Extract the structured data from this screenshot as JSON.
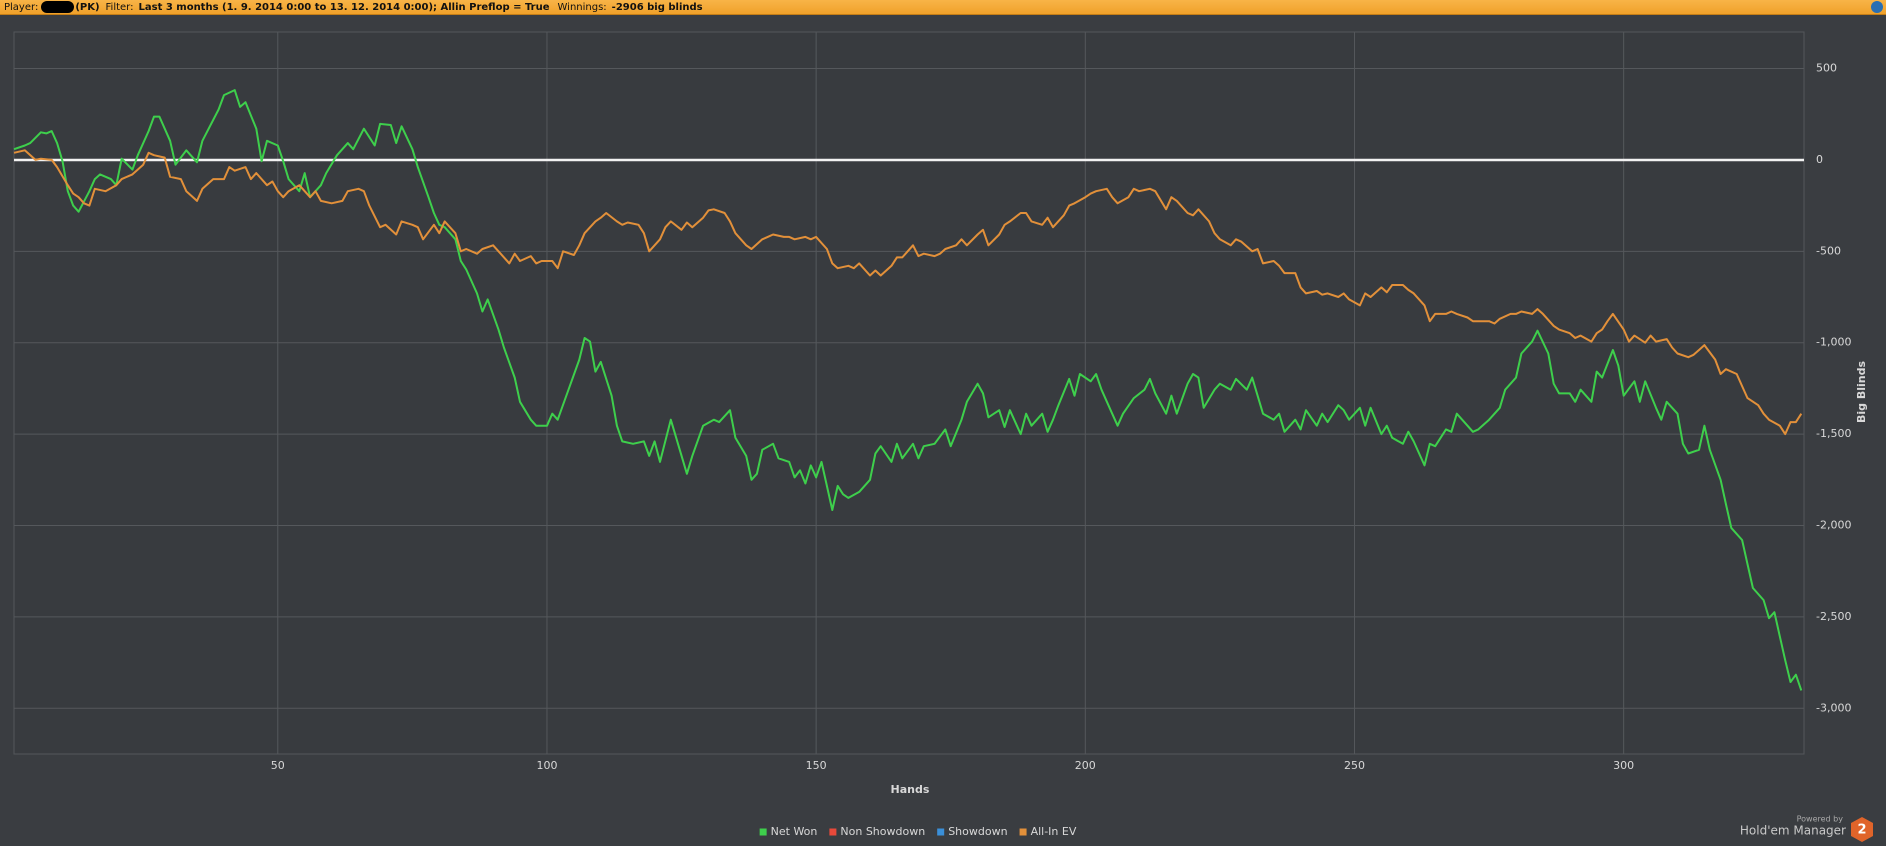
{
  "header": {
    "player_label": "Player:",
    "player_suffix": "(PK)",
    "filter_label": "Filter:",
    "filter": "Last 3 months (1. 9. 2014 0:00 to 13. 12. 2014 0:00); Allin Preflop = True",
    "winnings_label": "Winnings:",
    "winnings": "-2906 big blinds"
  },
  "chart_data": {
    "type": "line",
    "x_label": "Hands",
    "y_label": "Big Blinds",
    "xlim": [
      1,
      333.5
    ],
    "ylim": [
      -3250,
      700
    ],
    "xticks": [
      50,
      100,
      150,
      200,
      250,
      300
    ],
    "yticks": [
      500,
      0,
      -500,
      {
        "value": -1000,
        "label": "-1,000"
      },
      {
        "value": -1500,
        "label": "-1,500"
      },
      {
        "value": -2000,
        "label": "-2,000"
      },
      {
        "value": -2500,
        "label": "-2,500"
      },
      {
        "value": -3000,
        "label": "-3,000"
      }
    ],
    "grid": true,
    "series": [
      {
        "name": "Net Won",
        "color": "#3ecf4c",
        "x": [
          1,
          3,
          4,
          6,
          7,
          8,
          9,
          10,
          11,
          12,
          13,
          15,
          16,
          17,
          19,
          20,
          21,
          23,
          24,
          26,
          27,
          28,
          30,
          31,
          33,
          35,
          36,
          39,
          40,
          42,
          43,
          44,
          46,
          47,
          48,
          50,
          51,
          52,
          54,
          55,
          56,
          58,
          59,
          61,
          63,
          64,
          66,
          68,
          69,
          71,
          72,
          73,
          75,
          76,
          78,
          79,
          80,
          81,
          83,
          84,
          85,
          87,
          88,
          89,
          91,
          92,
          94,
          95,
          97,
          98,
          100,
          101,
          102,
          104,
          106,
          107,
          108,
          109,
          110,
          112,
          113,
          114,
          116,
          118,
          119,
          120,
          121,
          123,
          124,
          126,
          127,
          129,
          131,
          132,
          134,
          135,
          137,
          138,
          139,
          140,
          142,
          143,
          145,
          146,
          147,
          148,
          149,
          150,
          151,
          153,
          154,
          155,
          156,
          158,
          160,
          161,
          162,
          164,
          165,
          166,
          168,
          169,
          170,
          172,
          174,
          175,
          177,
          178,
          180,
          181,
          182,
          184,
          185,
          186,
          188,
          189,
          190,
          192,
          193,
          194,
          195,
          197,
          198,
          199,
          201,
          202,
          203,
          205,
          206,
          207,
          209,
          211,
          212,
          213,
          215,
          216,
          217,
          219,
          220,
          221,
          222,
          224,
          225,
          227,
          228,
          230,
          231,
          233,
          235,
          236,
          237,
          239,
          240,
          241,
          243,
          244,
          245,
          247,
          248,
          249,
          251,
          252,
          253,
          255,
          256,
          257,
          259,
          260,
          261,
          263,
          264,
          265,
          267,
          268,
          269,
          271,
          272,
          273,
          275,
          277,
          278,
          280,
          281,
          283,
          284,
          286,
          287,
          288,
          290,
          291,
          292,
          294,
          295,
          296,
          298,
          299,
          300,
          302,
          303,
          304,
          306,
          307,
          308,
          310,
          311,
          312,
          314,
          315,
          316,
          318,
          319,
          320,
          322,
          323,
          324,
          326,
          327,
          328,
          329,
          330,
          331,
          332,
          333
        ],
        "values": [
          59,
          79,
          92,
          151,
          145,
          158,
          92,
          -7,
          -171,
          -250,
          -283,
          -171,
          -105,
          -79,
          -105,
          -138,
          7,
          -53,
          26,
          158,
          237,
          237,
          105,
          -26,
          53,
          -13,
          105,
          276,
          355,
          382,
          290,
          316,
          171,
          -7,
          105,
          79,
          -7,
          -105,
          -171,
          -72,
          -204,
          -138,
          -72,
          26,
          92,
          59,
          171,
          79,
          197,
          191,
          92,
          184,
          59,
          -39,
          -204,
          -290,
          -355,
          -368,
          -434,
          -553,
          -599,
          -730,
          -829,
          -763,
          -928,
          -1026,
          -1191,
          -1323,
          -1421,
          -1454,
          -1454,
          -1388,
          -1421,
          -1257,
          -1092,
          -974,
          -994,
          -1158,
          -1105,
          -1290,
          -1454,
          -1540,
          -1553,
          -1540,
          -1619,
          -1540,
          -1652,
          -1421,
          -1520,
          -1717,
          -1619,
          -1454,
          -1421,
          -1434,
          -1369,
          -1520,
          -1619,
          -1750,
          -1717,
          -1586,
          -1553,
          -1632,
          -1652,
          -1737,
          -1698,
          -1770,
          -1671,
          -1737,
          -1652,
          -1915,
          -1783,
          -1829,
          -1849,
          -1816,
          -1750,
          -1606,
          -1566,
          -1652,
          -1553,
          -1632,
          -1553,
          -1632,
          -1566,
          -1553,
          -1474,
          -1566,
          -1421,
          -1323,
          -1224,
          -1277,
          -1408,
          -1369,
          -1461,
          -1369,
          -1500,
          -1388,
          -1454,
          -1388,
          -1487,
          -1421,
          -1342,
          -1198,
          -1290,
          -1171,
          -1211,
          -1171,
          -1257,
          -1388,
          -1454,
          -1388,
          -1303,
          -1257,
          -1198,
          -1277,
          -1388,
          -1290,
          -1388,
          -1224,
          -1171,
          -1191,
          -1356,
          -1257,
          -1224,
          -1257,
          -1198,
          -1257,
          -1191,
          -1388,
          -1421,
          -1388,
          -1487,
          -1421,
          -1474,
          -1369,
          -1454,
          -1388,
          -1434,
          -1342,
          -1369,
          -1421,
          -1356,
          -1454,
          -1356,
          -1500,
          -1454,
          -1520,
          -1553,
          -1487,
          -1540,
          -1671,
          -1553,
          -1566,
          -1474,
          -1487,
          -1388,
          -1454,
          -1487,
          -1474,
          -1421,
          -1356,
          -1257,
          -1191,
          -1059,
          -994,
          -934,
          -1059,
          -1224,
          -1277,
          -1277,
          -1323,
          -1257,
          -1323,
          -1158,
          -1191,
          -1040,
          -1125,
          -1290,
          -1211,
          -1323,
          -1211,
          -1356,
          -1421,
          -1323,
          -1388,
          -1553,
          -1606,
          -1586,
          -1454,
          -1586,
          -1750,
          -1882,
          -2013,
          -2079,
          -2211,
          -2342,
          -2408,
          -2507,
          -2474,
          -2606,
          -2737,
          -2856,
          -2816,
          -2902
        ]
      },
      {
        "name": "Non Showdown",
        "color": "#e8493a"
      },
      {
        "name": "Showdown",
        "color": "#3a8fd8"
      },
      {
        "name": "All-In EV",
        "color": "#e2903a",
        "x": [
          1,
          3,
          5,
          6,
          8,
          9,
          11,
          12,
          13,
          14,
          15,
          16,
          18,
          20,
          21,
          23,
          25,
          26,
          27,
          29,
          30,
          32,
          33,
          35,
          36,
          38,
          40,
          41,
          42,
          44,
          45,
          46,
          48,
          49,
          50,
          51,
          52,
          54,
          56,
          57,
          58,
          60,
          62,
          63,
          65,
          66,
          67,
          69,
          70,
          72,
          73,
          75,
          76,
          77,
          79,
          80,
          81,
          83,
          84,
          85,
          87,
          88,
          90,
          91,
          93,
          94,
          95,
          97,
          98,
          99,
          101,
          102,
          103,
          105,
          106,
          107,
          109,
          110,
          111,
          113,
          114,
          115,
          117,
          118,
          119,
          121,
          122,
          123,
          125,
          126,
          127,
          129,
          130,
          131,
          133,
          134,
          135,
          137,
          138,
          140,
          141,
          142,
          144,
          145,
          146,
          148,
          149,
          150,
          152,
          153,
          154,
          156,
          157,
          158,
          160,
          161,
          162,
          164,
          165,
          166,
          168,
          169,
          170,
          172,
          173,
          174,
          176,
          177,
          178,
          180,
          181,
          182,
          184,
          185,
          186,
          188,
          189,
          190,
          192,
          193,
          194,
          196,
          197,
          198,
          200,
          201,
          202,
          204,
          205,
          206,
          208,
          209,
          210,
          212,
          213,
          215,
          216,
          217,
          219,
          220,
          221,
          223,
          224,
          225,
          227,
          228,
          229,
          231,
          232,
          233,
          235,
          236,
          237,
          239,
          240,
          241,
          243,
          244,
          245,
          247,
          248,
          249,
          251,
          252,
          253,
          255,
          256,
          257,
          259,
          260,
          261,
          263,
          264,
          265,
          267,
          268,
          269,
          271,
          272,
          273,
          275,
          276,
          277,
          279,
          280,
          281,
          283,
          284,
          285,
          287,
          288,
          290,
          291,
          292,
          294,
          295,
          296,
          297,
          298,
          300,
          301,
          302,
          304,
          305,
          306,
          308,
          309,
          310,
          312,
          313,
          314,
          315,
          317,
          318,
          319,
          321,
          322,
          323,
          325,
          326,
          327,
          329,
          330,
          331,
          332,
          333
        ],
        "values": [
          39,
          53,
          0,
          7,
          0,
          -39,
          -138,
          -184,
          -204,
          -237,
          -250,
          -158,
          -171,
          -138,
          -105,
          -79,
          -26,
          39,
          26,
          13,
          -92,
          -105,
          -171,
          -224,
          -158,
          -105,
          -105,
          -39,
          -59,
          -39,
          -105,
          -72,
          -138,
          -118,
          -171,
          -204,
          -171,
          -138,
          -204,
          -171,
          -224,
          -237,
          -224,
          -171,
          -158,
          -171,
          -250,
          -368,
          -355,
          -408,
          -336,
          -355,
          -368,
          -434,
          -355,
          -401,
          -336,
          -401,
          -500,
          -487,
          -513,
          -487,
          -467,
          -500,
          -566,
          -513,
          -553,
          -526,
          -566,
          -553,
          -553,
          -592,
          -500,
          -520,
          -467,
          -401,
          -336,
          -316,
          -290,
          -336,
          -355,
          -342,
          -355,
          -401,
          -500,
          -434,
          -368,
          -336,
          -382,
          -342,
          -368,
          -316,
          -276,
          -270,
          -290,
          -336,
          -401,
          -467,
          -487,
          -434,
          -421,
          -408,
          -421,
          -421,
          -434,
          -421,
          -434,
          -421,
          -487,
          -566,
          -592,
          -579,
          -592,
          -566,
          -632,
          -605,
          -632,
          -579,
          -533,
          -533,
          -467,
          -526,
          -513,
          -526,
          -513,
          -487,
          -467,
          -434,
          -467,
          -408,
          -382,
          -467,
          -408,
          -355,
          -336,
          -290,
          -290,
          -336,
          -355,
          -316,
          -368,
          -303,
          -250,
          -237,
          -204,
          -184,
          -171,
          -158,
          -204,
          -237,
          -204,
          -158,
          -171,
          -158,
          -171,
          -270,
          -204,
          -224,
          -290,
          -303,
          -270,
          -336,
          -401,
          -434,
          -467,
          -434,
          -447,
          -500,
          -487,
          -566,
          -553,
          -579,
          -619,
          -619,
          -697,
          -730,
          -717,
          -737,
          -730,
          -750,
          -730,
          -763,
          -796,
          -730,
          -750,
          -697,
          -724,
          -684,
          -684,
          -711,
          -730,
          -796,
          -882,
          -842,
          -842,
          -829,
          -842,
          -862,
          -882,
          -882,
          -882,
          -895,
          -869,
          -842,
          -842,
          -829,
          -842,
          -816,
          -842,
          -908,
          -928,
          -948,
          -974,
          -961,
          -994,
          -948,
          -928,
          -882,
          -842,
          -928,
          -994,
          -961,
          -1000,
          -961,
          -994,
          -980,
          -1026,
          -1059,
          -1079,
          -1066,
          -1040,
          -1013,
          -1092,
          -1171,
          -1145,
          -1171,
          -1237,
          -1303,
          -1342,
          -1388,
          -1421,
          -1454,
          -1500,
          -1434,
          -1434,
          -1388
        ]
      }
    ]
  },
  "branding": {
    "powered_by": "Powered by",
    "product": "Hold'em Manager",
    "badge": "2"
  }
}
